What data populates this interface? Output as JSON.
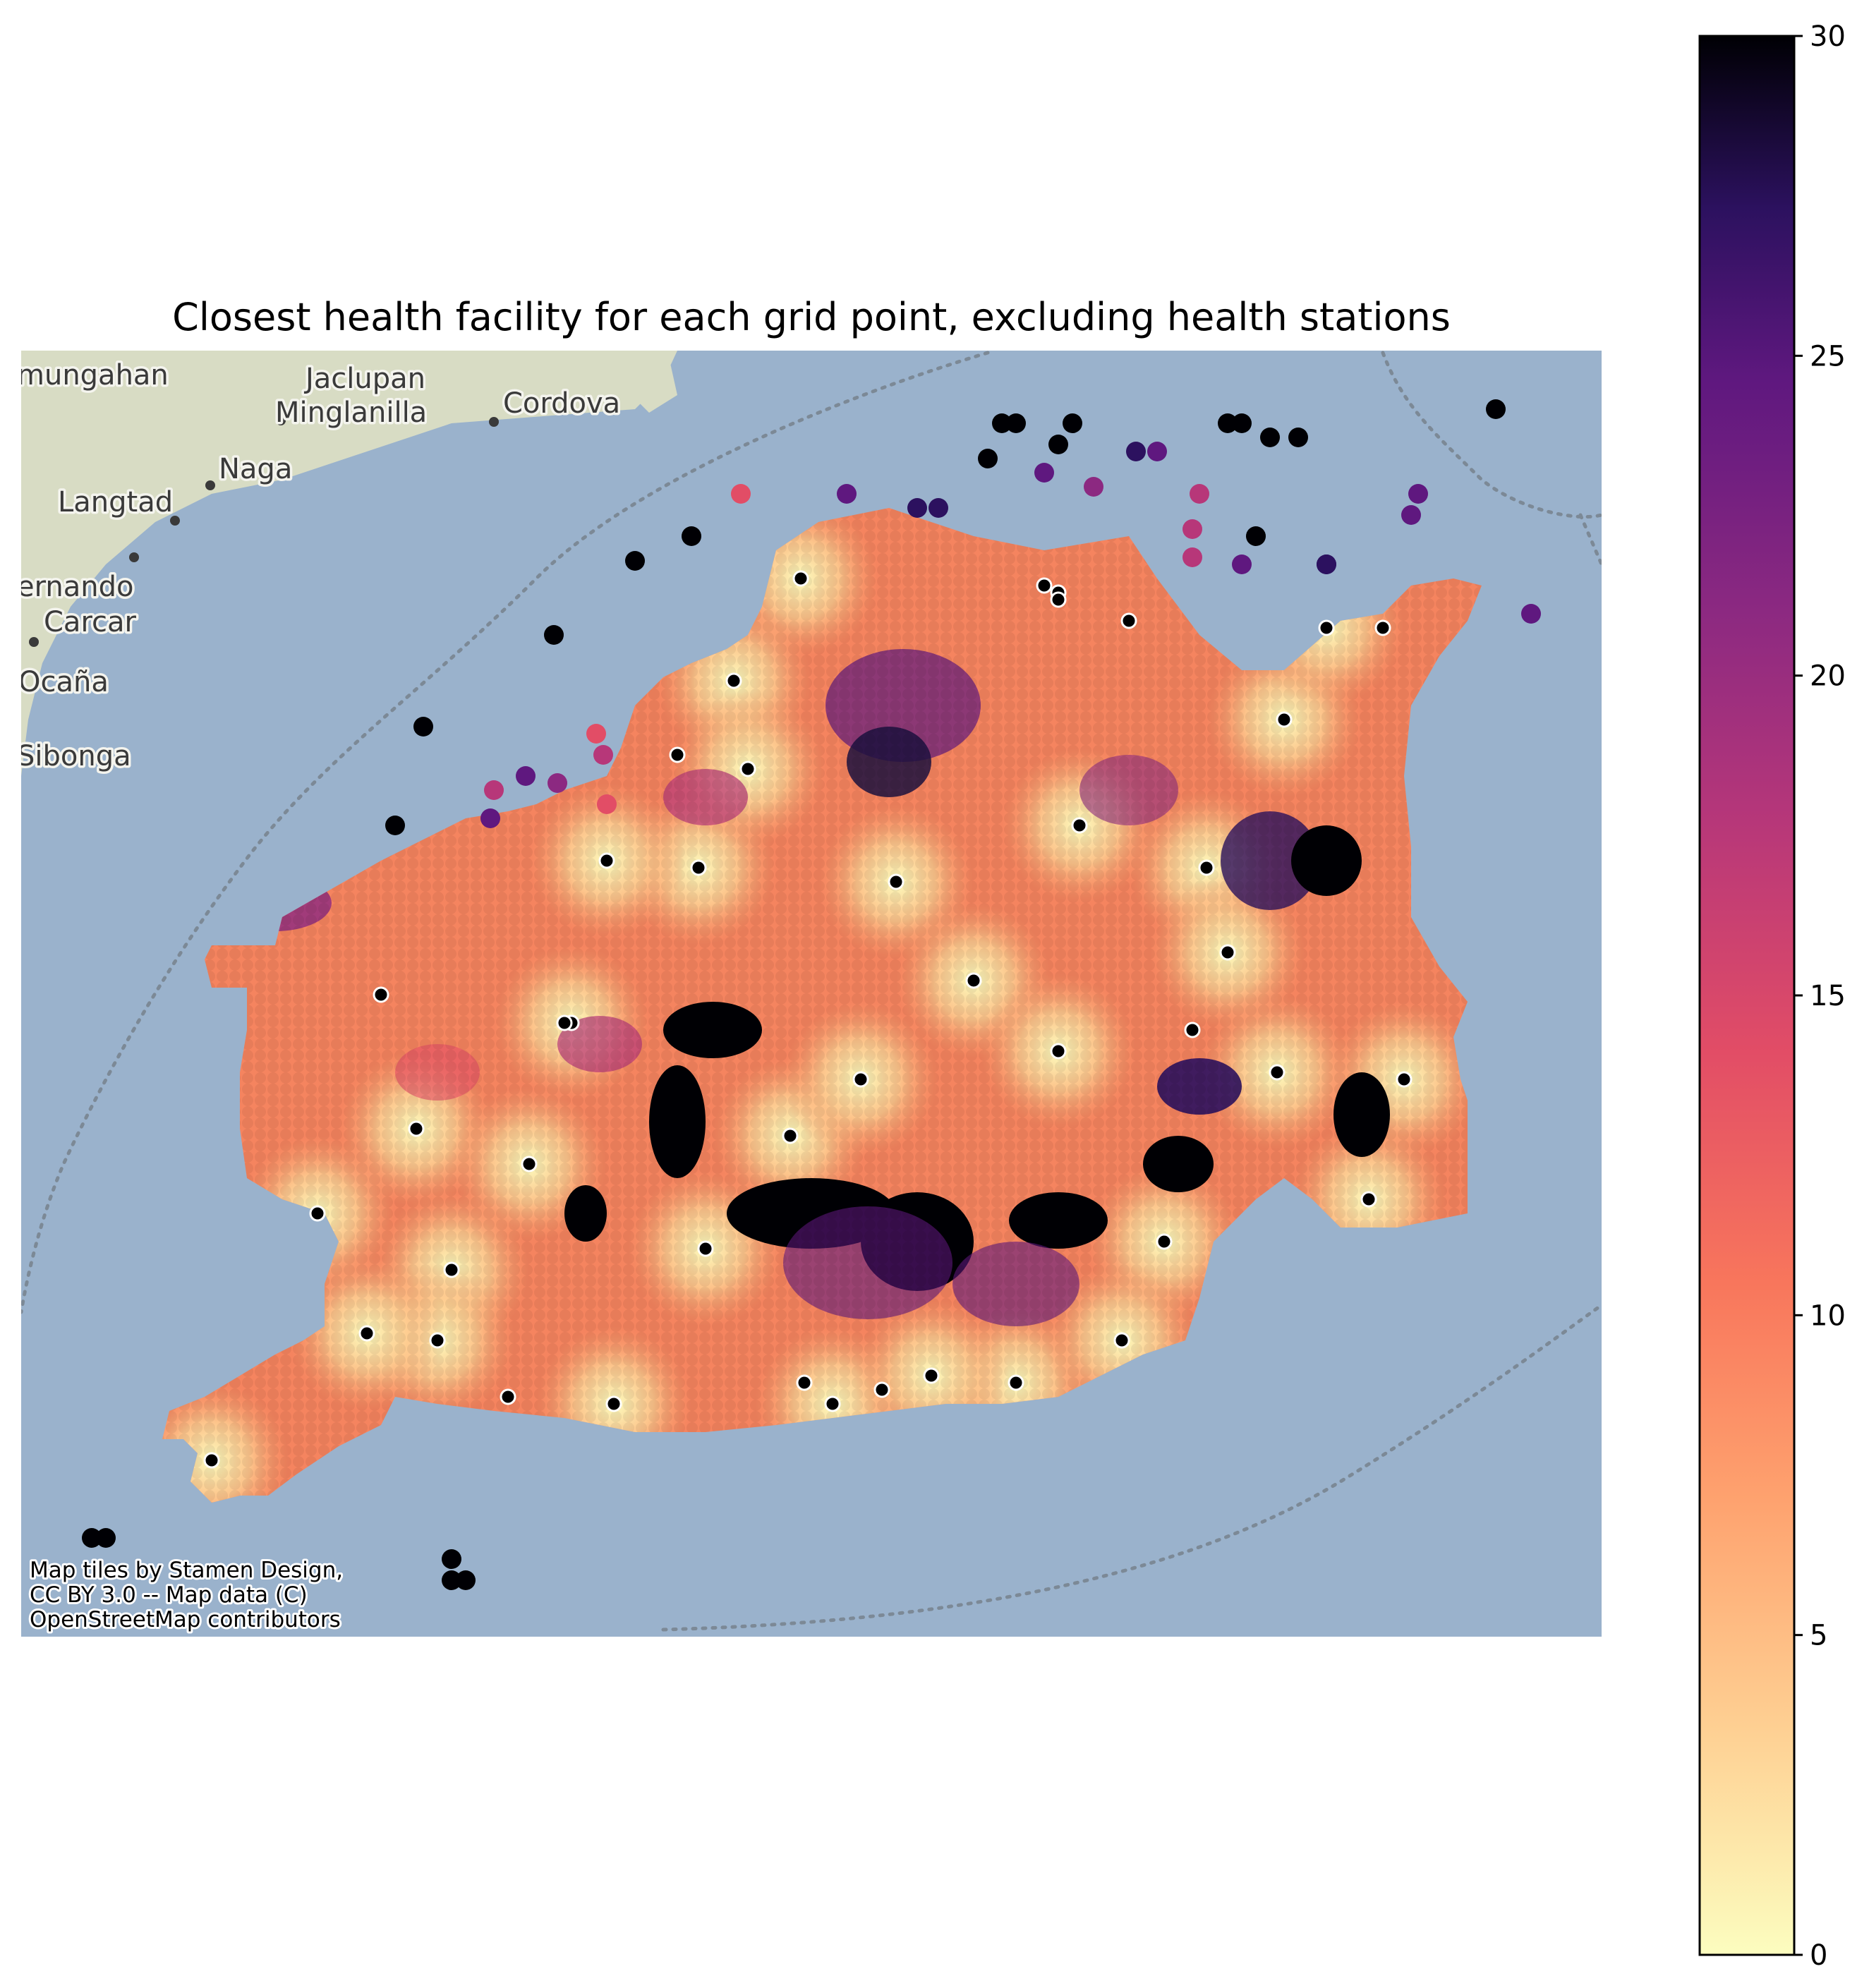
{
  "figure": {
    "title": "Closest health facility for each grid point, excluding health stations"
  },
  "map": {
    "sea_color": "#9ab2cc",
    "land_color": "#d8dcc4",
    "places": [
      {
        "name": "mungahan"
      },
      {
        "name": "Jaclupan"
      },
      {
        "name": "Minglanilla"
      },
      {
        "name": "Cordova"
      },
      {
        "name": "Naga"
      },
      {
        "name": "Langtad"
      },
      {
        "name": "ernando"
      },
      {
        "name": "Carcar"
      },
      {
        "name": "Ocaña"
      },
      {
        "name": "Sibonga"
      }
    ],
    "attribution": [
      "Map tiles by Stamen Design,",
      "CC BY 3.0 -- Map data (C)",
      "OpenStreetMap contributors"
    ],
    "facility_marker_color": "#000000",
    "facility_marker_edge": "#ffffff"
  },
  "colorbar": {
    "colormap": "magma_r",
    "min": 0,
    "max": 30,
    "ticks": [
      "0",
      "5",
      "10",
      "15",
      "20",
      "25",
      "30"
    ]
  }
}
